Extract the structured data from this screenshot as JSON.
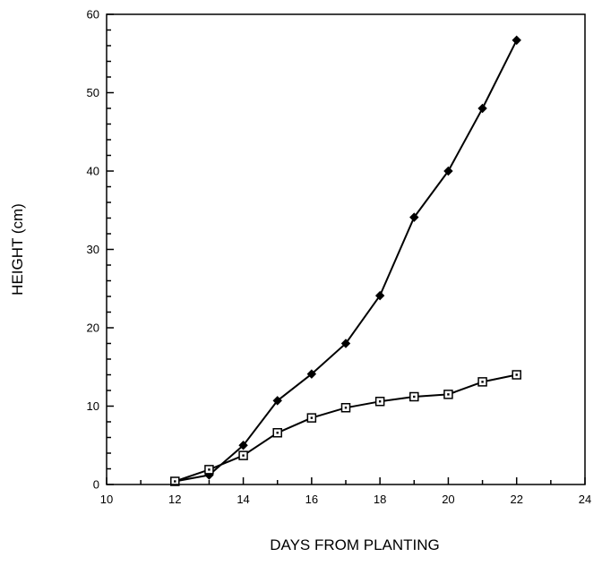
{
  "chart_data": {
    "type": "line",
    "title": "",
    "xlabel": "DAYS FROM PLANTING",
    "ylabel": "HEIGHT (cm)",
    "xlim": [
      10,
      24
    ],
    "ylim": [
      0,
      60
    ],
    "x_ticks": [
      10,
      12,
      14,
      16,
      18,
      20,
      22,
      24
    ],
    "y_ticks": [
      0,
      10,
      20,
      30,
      40,
      50,
      60
    ],
    "x_tick_labels": [
      "10",
      "12",
      "14",
      "16",
      "18",
      "20",
      "22",
      "24"
    ],
    "y_tick_labels": [
      "0",
      "10",
      "20",
      "30",
      "40",
      "50",
      "60"
    ],
    "grid": false,
    "legend": "none",
    "series": [
      {
        "marker": "filled-diamond",
        "color": "#000000",
        "x": [
          12,
          13,
          14,
          15,
          16,
          17,
          18,
          19,
          20,
          21,
          22
        ],
        "y": [
          0.4,
          1.2,
          5.0,
          10.7,
          14.1,
          18.0,
          24.1,
          34.1,
          40.0,
          48.0,
          56.7
        ]
      },
      {
        "marker": "open-square",
        "color": "#000000",
        "x": [
          12,
          13,
          14,
          15,
          16,
          17,
          18,
          19,
          20,
          21,
          22
        ],
        "y": [
          0.4,
          1.9,
          3.7,
          6.6,
          8.5,
          9.8,
          10.6,
          11.2,
          11.5,
          13.1,
          14.0
        ]
      }
    ]
  }
}
